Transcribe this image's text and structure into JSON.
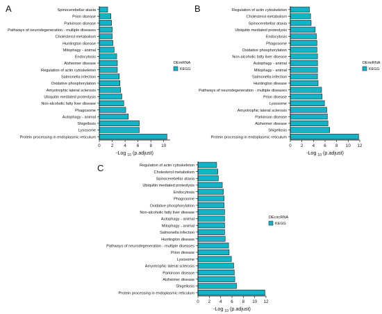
{
  "figure": {
    "panels": [
      "A",
      "B",
      "C"
    ]
  },
  "style": {
    "bar_fill": "#14b4c8",
    "bar_stroke": "#1a1a1a",
    "axis_color": "#000000",
    "text_color": "#111111"
  },
  "chart_data": [
    {
      "panel": "A",
      "type": "bar",
      "orientation": "horizontal",
      "xlabel_pre": "-Log",
      "xlabel_sub": "10",
      "xlabel_post": "(p.adjust)",
      "xlim": [
        0,
        11
      ],
      "xticks": [
        0,
        2,
        4,
        6,
        8,
        10
      ],
      "legend_title": "DEmRNA",
      "legend_entries": [
        "KEGG"
      ],
      "legend_placement": "right",
      "grid": false,
      "categories": [
        "Spinocerebellar ataxia",
        "Prion disease",
        "Parkinson disease",
        "Pathways of neurodegeneration - multiple diseases",
        "Cholesterol metabolism",
        "Huntington disease",
        "Mitophagy - animal",
        "Endocytosis",
        "Alzheimer disease",
        "Regulation of actin cytoskeleton",
        "Salmonella infection",
        "Oxidative phosphorylation",
        "Amyotrophic lateral sclerosis",
        "Ubiquitin mediated proteolysis",
        "Non-alcoholic fatty liver disease",
        "Phagosome",
        "Autophagy - animal",
        "Shigellosis",
        "Lysosome",
        "Protein processing in endoplasmic reticulum"
      ],
      "values": [
        1.3,
        1.8,
        1.9,
        2.0,
        2.0,
        2.1,
        2.3,
        2.7,
        2.8,
        2.8,
        3.1,
        3.2,
        3.3,
        3.5,
        3.8,
        4.1,
        4.5,
        6.2,
        6.2,
        10.5
      ]
    },
    {
      "panel": "B",
      "type": "bar",
      "orientation": "horizontal",
      "xlabel_pre": "-Log",
      "xlabel_sub": "10",
      "xlabel_post": "(p.adjust)",
      "xlim": [
        0,
        12
      ],
      "xticks": [
        0,
        2,
        4,
        6,
        8,
        10,
        12
      ],
      "legend_title": "DEmiRNA",
      "legend_entries": [
        "KEGG"
      ],
      "legend_placement": "right",
      "grid": false,
      "categories": [
        "Regulation of actin cytoskeleton",
        "Cholesterol metabolism",
        "Spinocerebellar ataxia",
        "Ubiquitin mediated proteolysis",
        "Endocytosis",
        "Phagosome",
        "Oxidative phosphorylation",
        "Non-alcoholic fatty liver disease",
        "Autophagy - animal",
        "Mitophagy - animal",
        "Salmonella infection",
        "Huntington disease",
        "Pathways of neurodegeneration - multiple diseases",
        "Prion disease",
        "Lysosome",
        "Amyotrophic lateral sclerosis",
        "Parkinson disease",
        "Alzheimer disease",
        "Shigellosis",
        "Protein processing in endoplasmic reticulum"
      ],
      "values": [
        3.3,
        3.5,
        3.6,
        4.3,
        4.5,
        4.6,
        4.6,
        4.7,
        4.7,
        4.7,
        4.7,
        4.8,
        5.4,
        5.5,
        5.9,
        6.3,
        6.4,
        6.5,
        6.8,
        11.8
      ]
    },
    {
      "panel": "C",
      "type": "bar",
      "orientation": "horizontal",
      "xlabel_pre": "-Log",
      "xlabel_sub": "10",
      "xlabel_post": "(p.adjust)",
      "xlim": [
        0,
        12
      ],
      "xticks": [
        0,
        2,
        4,
        6,
        8,
        10,
        12
      ],
      "legend_title": "DEcircRNA",
      "legend_entries": [
        "KEGG"
      ],
      "legend_placement": "right",
      "grid": false,
      "categories": [
        "Regulation of actin cytoskeleton",
        "Cholesterol metabolism",
        "Spinocerebellar ataxia",
        "Ubiquitin mediated proteolysis",
        "Endocytosis",
        "Phagosome",
        "Oxidative phosphorylation",
        "Non-alcoholic fatty liver disease",
        "Autophagy - animal",
        "Mitophagy - animal",
        "Salmonella infection",
        "Huntington disease",
        "Pathways of neurodegeneration - multiple diseases",
        "Prion disease",
        "Lysosome",
        "Amyotrophic lateral sclerosis",
        "Parkinson disease",
        "Alzheimer disease",
        "Shigellosis",
        "Protein processing in endoplasmic reticulum"
      ],
      "values": [
        3.3,
        3.5,
        3.6,
        4.3,
        4.5,
        4.6,
        4.6,
        4.7,
        4.7,
        4.7,
        4.7,
        4.8,
        5.4,
        5.5,
        5.9,
        6.3,
        6.4,
        6.5,
        6.8,
        11.8
      ]
    }
  ]
}
